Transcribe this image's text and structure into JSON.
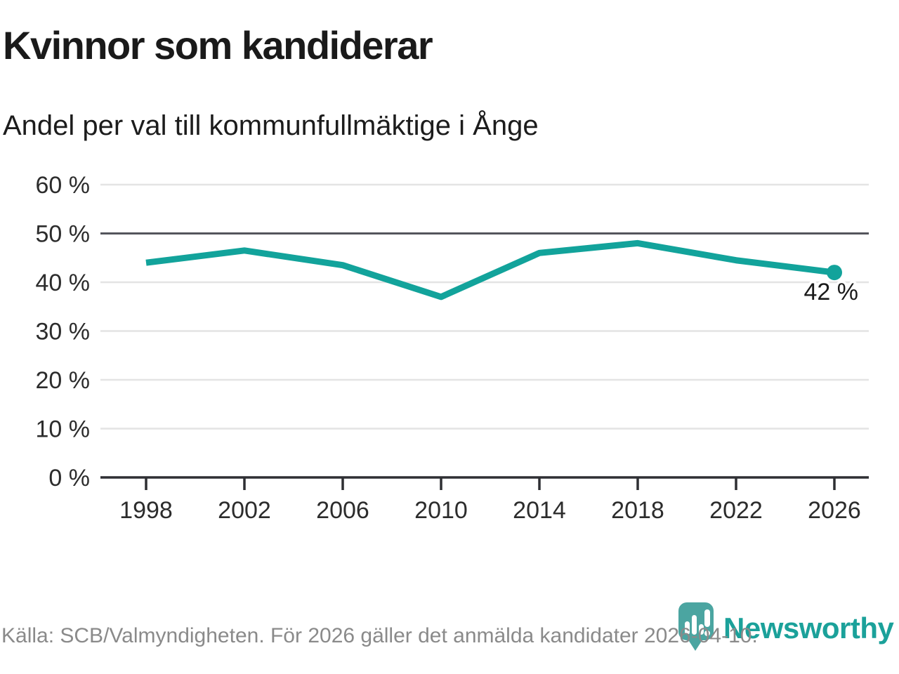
{
  "title": "Kvinnor som kandiderar",
  "subtitle": "Andel per val till kommunfullmäktige i Ånge",
  "footer": {
    "source_text": "Källa: SCB/Valmyndigheten. För 2026 gäller det anmälda kandidater 2026-04-10."
  },
  "logo": {
    "wordmark": "Newsworthy"
  },
  "colors": {
    "line": "#12a39b",
    "grid_light": "#e4e4e4",
    "reference_line": "#54555c",
    "axis": "#2e2f33",
    "text_dark": "#1a1a1a",
    "text_gray": "#8a8a8a",
    "logo_bubble": "#4ba5a1",
    "logo_text": "#1ba19a"
  },
  "chart_data": {
    "type": "line",
    "title": "Kvinnor som kandiderar",
    "subtitle": "Andel per val till kommunfullmäktige i Ånge",
    "categories": [
      "1998",
      "2002",
      "2006",
      "2010",
      "2014",
      "2018",
      "2022",
      "2026"
    ],
    "values": [
      44,
      46.5,
      43.5,
      37,
      46,
      48,
      44.5,
      42
    ],
    "ylim": [
      0,
      60
    ],
    "y_tick_step": 10,
    "y_tick_labels": [
      "0 %",
      "10 %",
      "20 %",
      "30 %",
      "40 %",
      "50 %",
      "60 %"
    ],
    "reference_line_value": 50,
    "grid": "horizontal",
    "end_point_label": "42 %",
    "marker_on_last_point": true,
    "line_color": "#12a39b"
  }
}
